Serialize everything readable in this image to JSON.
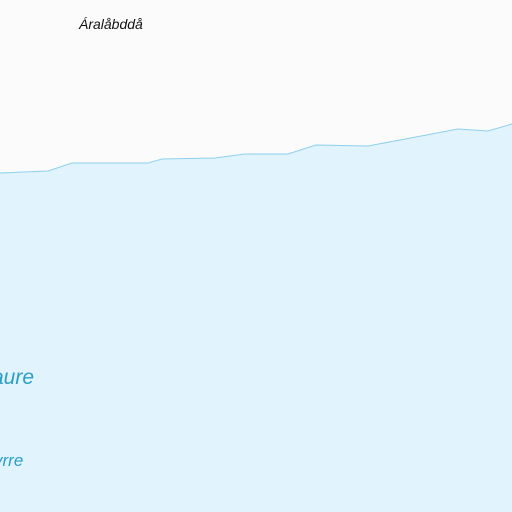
{
  "map": {
    "colors": {
      "land": "#fbfbfb",
      "water": "#e1f3fd",
      "shoreline": "#8ed0ec",
      "water_label": "#2a9ec9",
      "place_label": "#111111"
    },
    "labels": {
      "place": "Áralåbddå",
      "lake_fragment": "aure",
      "lake_fragment_small": "vrre"
    }
  }
}
